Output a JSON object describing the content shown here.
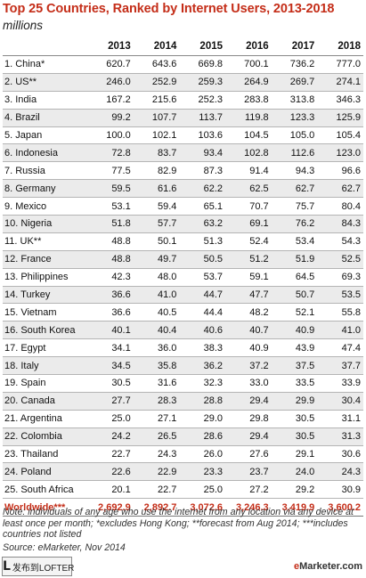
{
  "title": "Top 25 Countries, Ranked by Internet Users, 2013-2018",
  "subtitle": "millions",
  "colors": {
    "accent": "#c42d18",
    "row_alt": "#ebebeb"
  },
  "chart_data": {
    "type": "table",
    "title": "Top 25 Countries, Ranked by Internet Users, 2013-2018",
    "subtitle": "millions",
    "columns": [
      "2013",
      "2014",
      "2015",
      "2016",
      "2017",
      "2018"
    ],
    "rows": [
      {
        "label": "1. China*",
        "values": [
          "620.7",
          "643.6",
          "669.8",
          "700.1",
          "736.2",
          "777.0"
        ]
      },
      {
        "label": "2. US**",
        "values": [
          "246.0",
          "252.9",
          "259.3",
          "264.9",
          "269.7",
          "274.1"
        ]
      },
      {
        "label": "3. India",
        "values": [
          "167.2",
          "215.6",
          "252.3",
          "283.8",
          "313.8",
          "346.3"
        ]
      },
      {
        "label": "4. Brazil",
        "values": [
          "99.2",
          "107.7",
          "113.7",
          "119.8",
          "123.3",
          "125.9"
        ]
      },
      {
        "label": "5. Japan",
        "values": [
          "100.0",
          "102.1",
          "103.6",
          "104.5",
          "105.0",
          "105.4"
        ]
      },
      {
        "label": "6. Indonesia",
        "values": [
          "72.8",
          "83.7",
          "93.4",
          "102.8",
          "112.6",
          "123.0"
        ]
      },
      {
        "label": "7. Russia",
        "values": [
          "77.5",
          "82.9",
          "87.3",
          "91.4",
          "94.3",
          "96.6"
        ]
      },
      {
        "label": "8. Germany",
        "values": [
          "59.5",
          "61.6",
          "62.2",
          "62.5",
          "62.7",
          "62.7"
        ]
      },
      {
        "label": "9. Mexico",
        "values": [
          "53.1",
          "59.4",
          "65.1",
          "70.7",
          "75.7",
          "80.4"
        ]
      },
      {
        "label": "10. Nigeria",
        "values": [
          "51.8",
          "57.7",
          "63.2",
          "69.1",
          "76.2",
          "84.3"
        ]
      },
      {
        "label": "11. UK**",
        "values": [
          "48.8",
          "50.1",
          "51.3",
          "52.4",
          "53.4",
          "54.3"
        ]
      },
      {
        "label": "12. France",
        "values": [
          "48.8",
          "49.7",
          "50.5",
          "51.2",
          "51.9",
          "52.5"
        ]
      },
      {
        "label": "13. Philippines",
        "values": [
          "42.3",
          "48.0",
          "53.7",
          "59.1",
          "64.5",
          "69.3"
        ]
      },
      {
        "label": "14. Turkey",
        "values": [
          "36.6",
          "41.0",
          "44.7",
          "47.7",
          "50.7",
          "53.5"
        ]
      },
      {
        "label": "15. Vietnam",
        "values": [
          "36.6",
          "40.5",
          "44.4",
          "48.2",
          "52.1",
          "55.8"
        ]
      },
      {
        "label": "16. South Korea",
        "values": [
          "40.1",
          "40.4",
          "40.6",
          "40.7",
          "40.9",
          "41.0"
        ]
      },
      {
        "label": "17. Egypt",
        "values": [
          "34.1",
          "36.0",
          "38.3",
          "40.9",
          "43.9",
          "47.4"
        ]
      },
      {
        "label": "18. Italy",
        "values": [
          "34.5",
          "35.8",
          "36.2",
          "37.2",
          "37.5",
          "37.7"
        ]
      },
      {
        "label": "19. Spain",
        "values": [
          "30.5",
          "31.6",
          "32.3",
          "33.0",
          "33.5",
          "33.9"
        ]
      },
      {
        "label": "20. Canada",
        "values": [
          "27.7",
          "28.3",
          "28.8",
          "29.4",
          "29.9",
          "30.4"
        ]
      },
      {
        "label": "21. Argentina",
        "values": [
          "25.0",
          "27.1",
          "29.0",
          "29.8",
          "30.5",
          "31.1"
        ]
      },
      {
        "label": "22. Colombia",
        "values": [
          "24.2",
          "26.5",
          "28.6",
          "29.4",
          "30.5",
          "31.3"
        ]
      },
      {
        "label": "23. Thailand",
        "values": [
          "22.7",
          "24.3",
          "26.0",
          "27.6",
          "29.1",
          "30.6"
        ]
      },
      {
        "label": "24. Poland",
        "values": [
          "22.6",
          "22.9",
          "23.3",
          "23.7",
          "24.0",
          "24.3"
        ]
      },
      {
        "label": "25. South Africa",
        "values": [
          "20.1",
          "22.7",
          "25.0",
          "27.2",
          "29.2",
          "30.9"
        ]
      }
    ],
    "total": {
      "label": "Worldwide***",
      "values": [
        "2,692.9",
        "2,892.7",
        "3,072.6",
        "3,246.3",
        "3,419.9",
        "3,600.2"
      ]
    }
  },
  "note": "Note: individuals of any age who use the internet from any location via any device at least once per month; *excludes Hong Kong; **forecast from Aug 2014; ***includes countries not listed",
  "source": "Source: eMarketer, Nov 2014",
  "watermark": {
    "icon": "L",
    "text": "发布到LOFTER"
  },
  "brand": {
    "prefix": "e",
    "name": "Marketer.com"
  }
}
